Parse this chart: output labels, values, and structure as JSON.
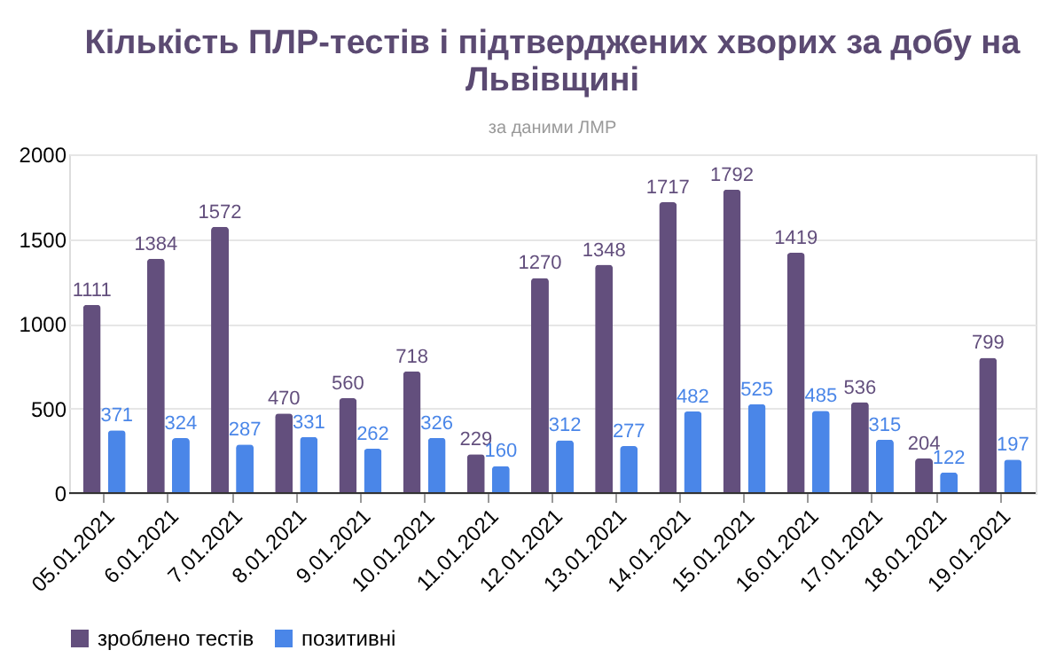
{
  "chart_data": {
    "type": "bar",
    "title": "Кількість ПЛР-тестів і підтверджених хворих за добу на Львівщині",
    "subtitle": "за даними ЛМР",
    "categories": [
      "05.01.2021",
      "6.01.2021",
      "7.01.2021",
      "8.01.2021",
      "9.01.2021",
      "10.01.2021",
      "11.01.2021",
      "12.01.2021",
      "13.01.2021",
      "14.01.2021",
      "15.01.2021",
      "16.01.2021",
      "17.01.2021",
      "18.01.2021",
      "19.01.2021"
    ],
    "series": [
      {
        "name": "зроблено тестів",
        "color": "#634f7d",
        "values": [
          1111,
          1384,
          1572,
          470,
          560,
          718,
          229,
          1270,
          1348,
          1717,
          1792,
          1419,
          536,
          204,
          799
        ]
      },
      {
        "name": "позитивні",
        "color": "#4a86e8",
        "values": [
          371,
          324,
          287,
          331,
          262,
          326,
          160,
          312,
          277,
          482,
          525,
          485,
          315,
          122,
          197
        ]
      }
    ],
    "ylim": [
      0,
      2000
    ],
    "yticks": [
      0,
      500,
      1000,
      1500,
      2000
    ],
    "grid": "y",
    "legend": "bottom",
    "data_labels": true
  }
}
